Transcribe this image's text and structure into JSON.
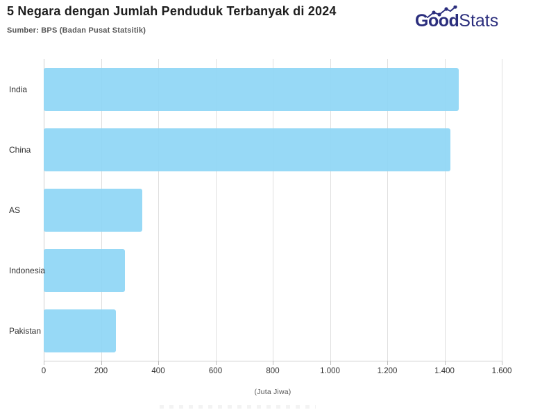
{
  "header": {
    "title": "5 Negara dengan Jumlah Penduduk Terbanyak di 2024",
    "source": "Sumber: BPS (Badan Pusat Statsitik)"
  },
  "logo": {
    "part_bold": "Good",
    "part_light": "Stats",
    "color": "#2b2e7d"
  },
  "chart_data": {
    "type": "bar",
    "orientation": "horizontal",
    "title": "5 Negara dengan Jumlah Penduduk Terbanyak di 2024",
    "categories": [
      "India",
      "China",
      "AS",
      "Indonesia",
      "Pakistan"
    ],
    "values": [
      1450,
      1420,
      345,
      283,
      251
    ],
    "xlabel": "(Juta Jiwa)",
    "xlim": [
      0,
      1600
    ],
    "x_tick_values": [
      0,
      200,
      400,
      600,
      800,
      1000,
      1200,
      1400,
      1600
    ],
    "x_tick_labels": [
      "0",
      "200",
      "400",
      "600",
      "800",
      "1.000",
      "1.200",
      "1.400",
      "1.600"
    ],
    "grid": true,
    "legend": false,
    "bar_color": "#8fd6f5"
  }
}
